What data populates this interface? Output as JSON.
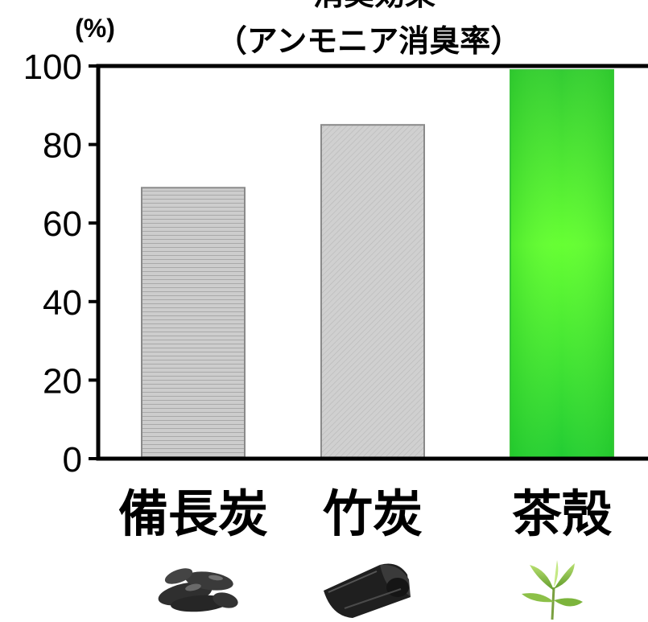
{
  "chart_data": {
    "type": "bar",
    "title": "消臭効果",
    "subtitle": "（アンモニア消臭率）",
    "ylabel": "(%)",
    "ylim": [
      0,
      100
    ],
    "yticks": [
      0,
      20,
      40,
      60,
      80,
      100
    ],
    "categories": [
      "備長炭",
      "竹炭",
      "茶殻"
    ],
    "values": [
      69,
      85,
      99
    ],
    "bar_styles": [
      "horizontal-stripes",
      "diagonal-hatch",
      "green-gradient"
    ],
    "colors": {
      "stripe_bar": "#c8c8c8",
      "hatch_bar": "#cfcfcf",
      "green_bar": "#44dd33",
      "axis": "#000000"
    },
    "grid": false,
    "legend": "none"
  },
  "images": [
    {
      "name": "binchotan-photo"
    },
    {
      "name": "bamboo-charcoal-photo"
    },
    {
      "name": "tea-leaf-photo"
    }
  ]
}
